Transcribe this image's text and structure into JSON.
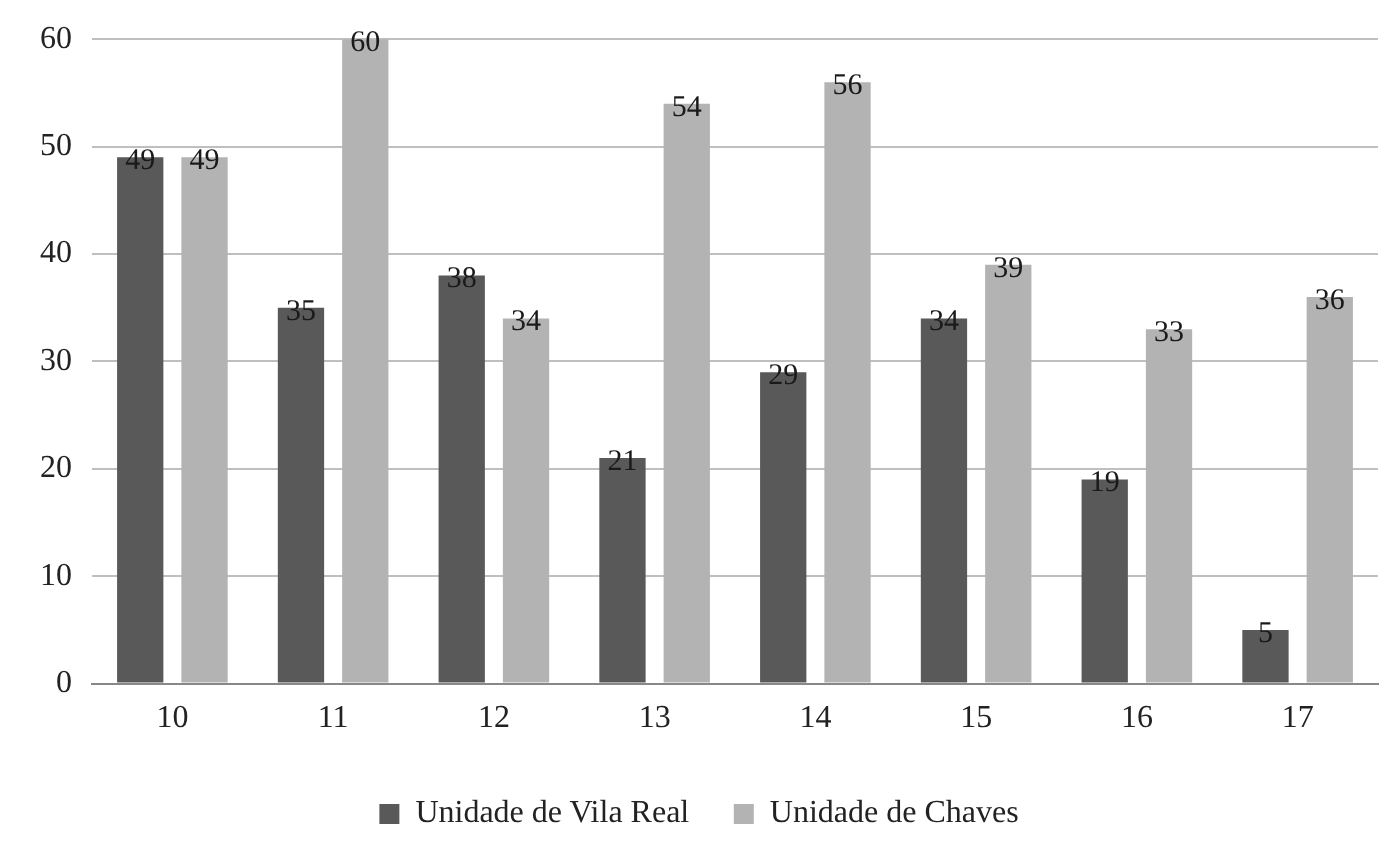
{
  "chart_data": {
    "type": "bar",
    "categories": [
      "10",
      "11",
      "12",
      "13",
      "14",
      "15",
      "16",
      "17"
    ],
    "series": [
      {
        "name": "Unidade de Vila Real",
        "color": "#595959",
        "values": [
          49,
          35,
          38,
          21,
          29,
          34,
          19,
          5
        ]
      },
      {
        "name": "Unidade de Chaves",
        "color": "#b3b3b3",
        "values": [
          49,
          60,
          34,
          54,
          56,
          39,
          33,
          36
        ]
      }
    ],
    "ylim": [
      0,
      60
    ],
    "yticks": [
      0,
      10,
      20,
      30,
      40,
      50,
      60
    ],
    "grid": "y",
    "legend": "bottom",
    "data_labels": true
  }
}
